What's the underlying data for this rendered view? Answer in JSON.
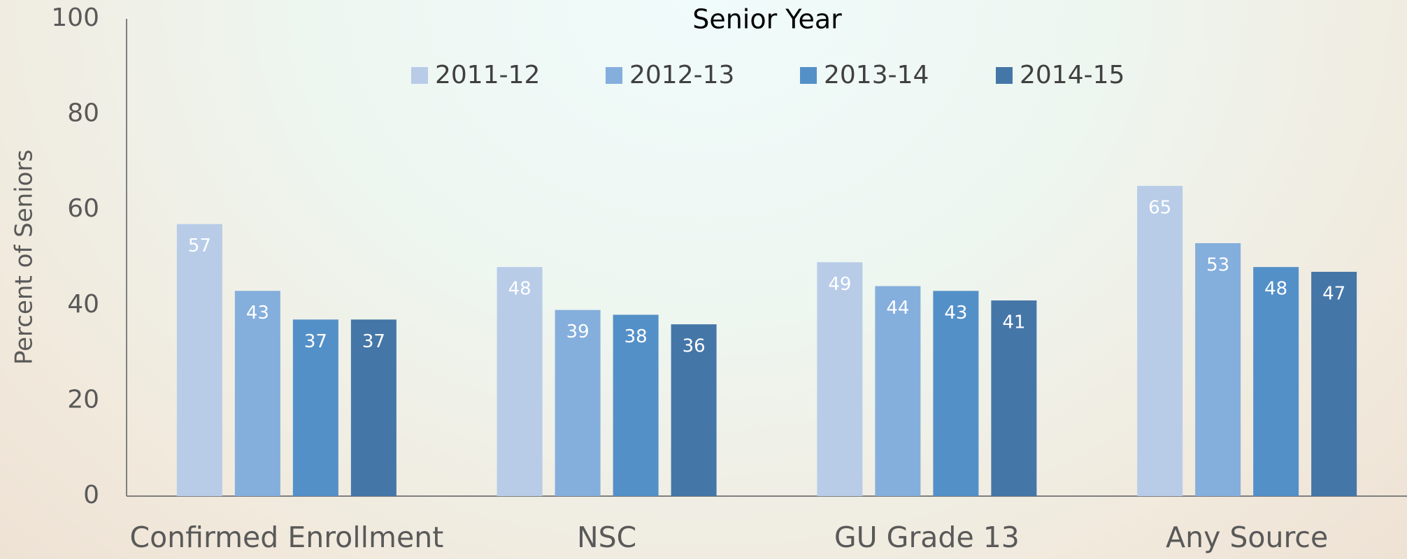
{
  "chart_data": {
    "type": "bar",
    "title": "Senior Year",
    "y_label": "Percent of Seniors",
    "categories": [
      "Confirmed Enrollment",
      "NSC",
      "GU Grade 13",
      "Any Source"
    ],
    "series": [
      {
        "name": "2011-12",
        "color": "#b8cce8",
        "values": [
          57,
          48,
          49,
          65
        ]
      },
      {
        "name": "2012-13",
        "color": "#84aedc",
        "values": [
          43,
          39,
          44,
          53
        ]
      },
      {
        "name": "2013-14",
        "color": "#5490c8",
        "values": [
          37,
          38,
          43,
          48
        ]
      },
      {
        "name": "2014-15",
        "color": "#4576a8",
        "values": [
          37,
          36,
          41,
          47
        ]
      }
    ],
    "ylim": [
      0,
      100
    ],
    "yticks": [
      0,
      20,
      40,
      60,
      80,
      100
    ],
    "grid": false,
    "legend": "top"
  }
}
